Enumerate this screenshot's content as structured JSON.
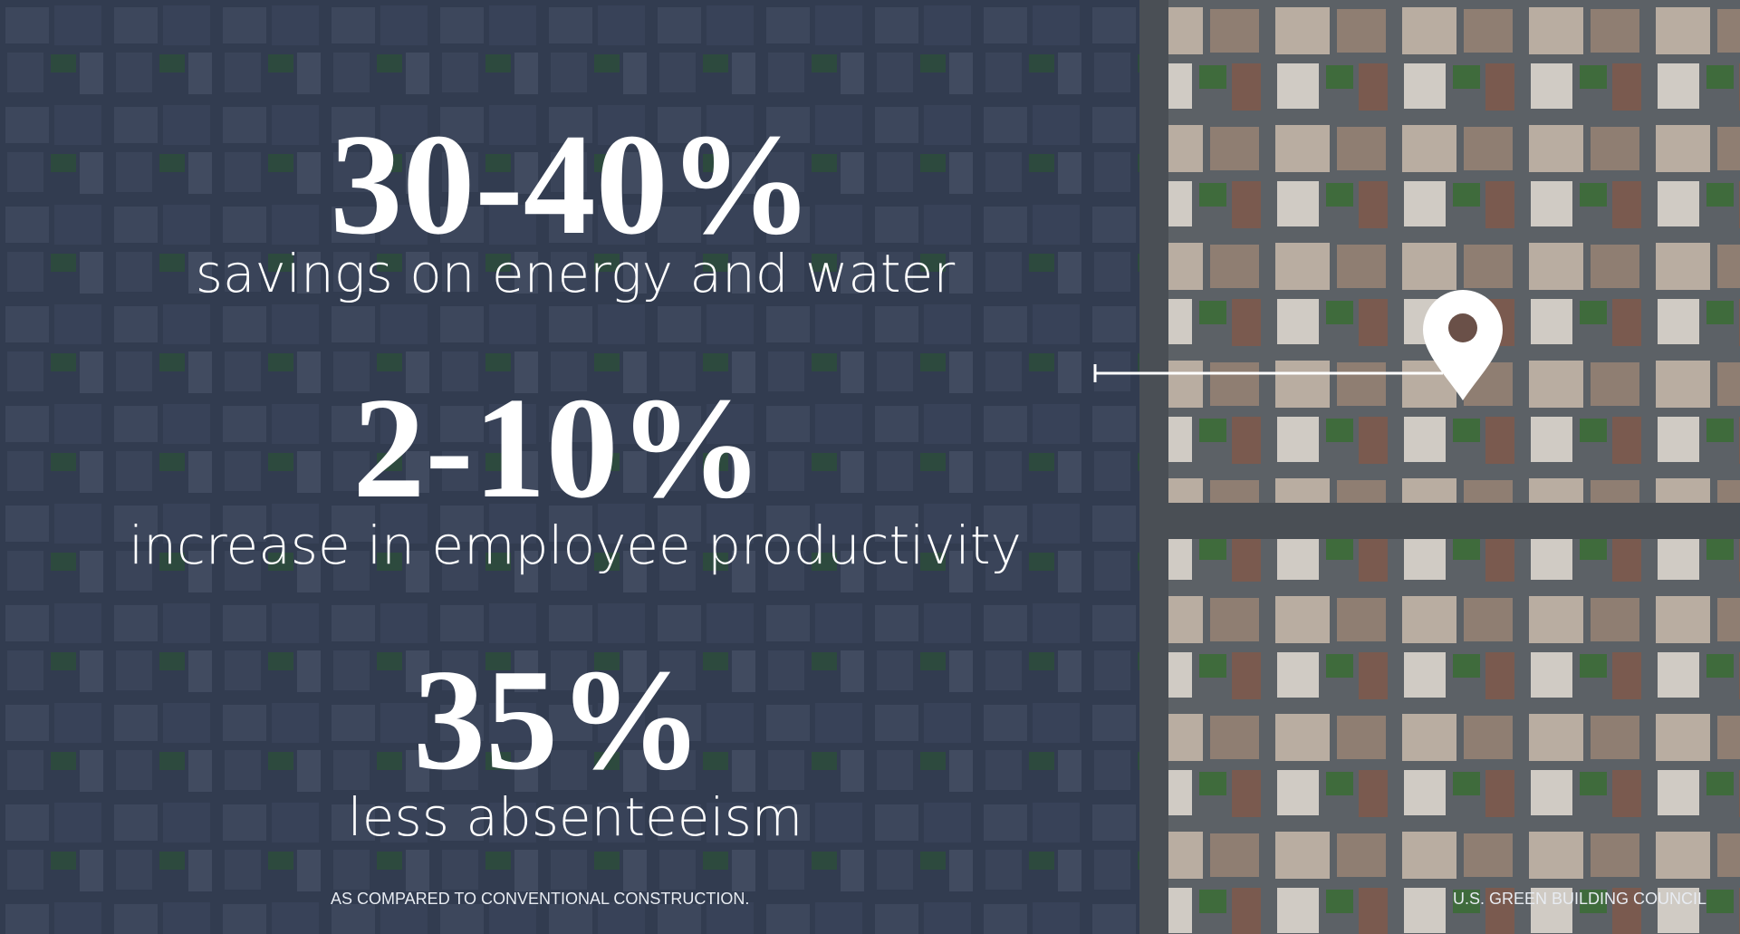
{
  "stats": [
    {
      "figure": "30-40%",
      "caption": "savings on energy and water"
    },
    {
      "figure": "2-10%",
      "caption": "increase in employee productivity"
    },
    {
      "figure": "35%",
      "caption": "less absenteeism"
    }
  ],
  "footnote": "AS COMPARED TO CONVENTIONAL CONSTRUCTION.",
  "source": "U.S. GREEN BUILDING COUNCIL"
}
